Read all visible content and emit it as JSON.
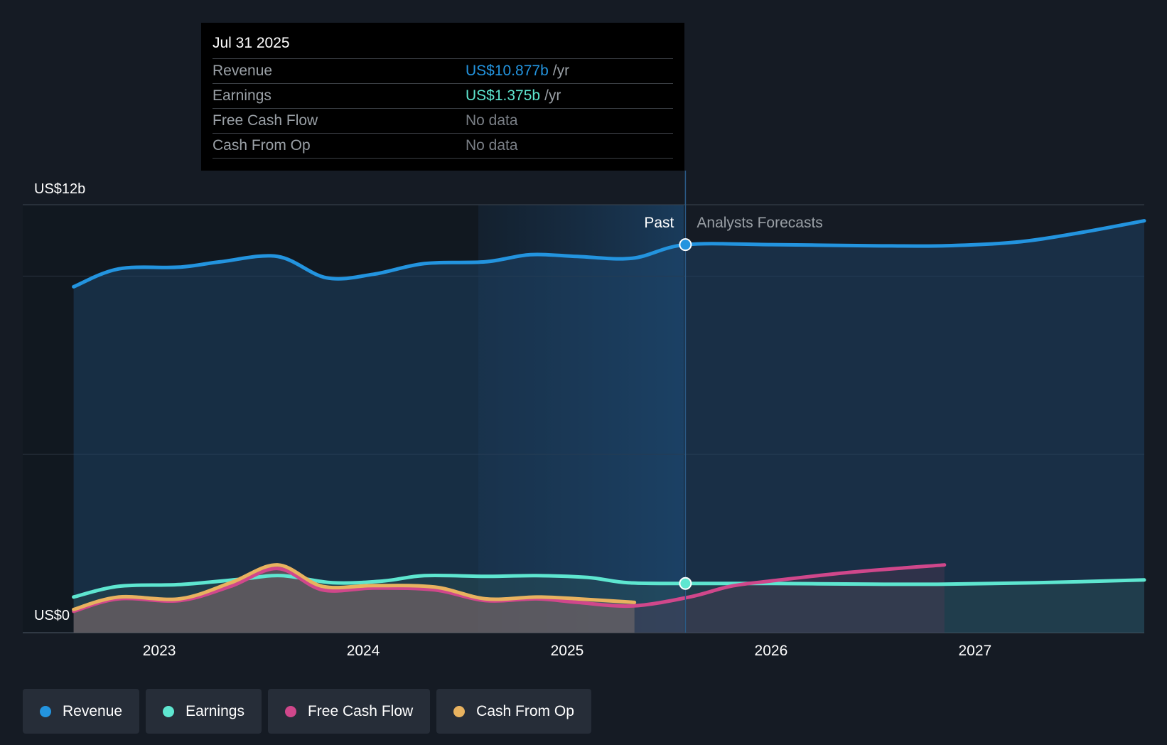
{
  "colors": {
    "revenue": "#2394df",
    "earnings": "#5ee6d0",
    "fcf": "#d0478b",
    "cfo": "#e8b25f",
    "background": "#151b24"
  },
  "tooltip": {
    "date": "Jul 31 2025",
    "rows": [
      {
        "label": "Revenue",
        "value": "US$10.877b",
        "unit": "/yr",
        "color": "#2394df"
      },
      {
        "label": "Earnings",
        "value": "US$1.375b",
        "unit": "/yr",
        "color": "#5ee6d0"
      },
      {
        "label": "Free Cash Flow",
        "value": "No data",
        "unit": "",
        "color": "#7a7f86"
      },
      {
        "label": "Cash From Op",
        "value": "No data",
        "unit": "",
        "color": "#7a7f86"
      }
    ]
  },
  "chart_data": {
    "type": "line",
    "y_top_label": "US$12b",
    "y_bottom_label": "US$0",
    "ylim": [
      0,
      12
    ],
    "xlim": [
      2022.55,
      2027.83
    ],
    "divider_x": 2025.58,
    "past_label": "Past",
    "forecast_label": "Analysts Forecasts",
    "x_ticks": [
      {
        "label": "2023",
        "x": 2023.0
      },
      {
        "label": "2024",
        "x": 2024.0
      },
      {
        "label": "2025",
        "x": 2025.0
      },
      {
        "label": "2026",
        "x": 2026.0
      },
      {
        "label": "2027",
        "x": 2027.0
      }
    ],
    "series": [
      {
        "name": "Revenue",
        "key": "revenue",
        "points": [
          [
            2022.58,
            9.7
          ],
          [
            2022.8,
            10.2
          ],
          [
            2023.1,
            10.25
          ],
          [
            2023.3,
            10.4
          ],
          [
            2023.58,
            10.55
          ],
          [
            2023.82,
            9.95
          ],
          [
            2024.05,
            10.05
          ],
          [
            2024.3,
            10.35
          ],
          [
            2024.6,
            10.4
          ],
          [
            2024.82,
            10.6
          ],
          [
            2025.05,
            10.55
          ],
          [
            2025.32,
            10.5
          ],
          [
            2025.58,
            10.88
          ],
          [
            2026.0,
            10.88
          ],
          [
            2026.5,
            10.85
          ],
          [
            2026.85,
            10.85
          ],
          [
            2027.2,
            10.95
          ],
          [
            2027.5,
            11.2
          ],
          [
            2027.83,
            11.55
          ]
        ],
        "highlight": [
          2025.58,
          10.88
        ]
      },
      {
        "name": "Earnings",
        "key": "earnings",
        "points": [
          [
            2022.58,
            1.0
          ],
          [
            2022.8,
            1.3
          ],
          [
            2023.1,
            1.35
          ],
          [
            2023.4,
            1.5
          ],
          [
            2023.6,
            1.6
          ],
          [
            2023.85,
            1.4
          ],
          [
            2024.1,
            1.45
          ],
          [
            2024.3,
            1.6
          ],
          [
            2024.6,
            1.58
          ],
          [
            2024.85,
            1.6
          ],
          [
            2025.1,
            1.55
          ],
          [
            2025.3,
            1.4
          ],
          [
            2025.58,
            1.38
          ],
          [
            2026.0,
            1.38
          ],
          [
            2026.5,
            1.36
          ],
          [
            2026.85,
            1.36
          ],
          [
            2027.3,
            1.4
          ],
          [
            2027.83,
            1.48
          ]
        ],
        "highlight": [
          2025.58,
          1.38
        ]
      },
      {
        "name": "Free Cash Flow",
        "key": "fcf",
        "points": [
          [
            2022.58,
            0.6
          ],
          [
            2022.8,
            0.95
          ],
          [
            2023.1,
            0.9
          ],
          [
            2023.35,
            1.3
          ],
          [
            2023.58,
            1.8
          ],
          [
            2023.8,
            1.2
          ],
          [
            2024.05,
            1.25
          ],
          [
            2024.35,
            1.2
          ],
          [
            2024.6,
            0.9
          ],
          [
            2024.85,
            0.95
          ],
          [
            2025.05,
            0.85
          ],
          [
            2025.32,
            0.75
          ],
          [
            2025.6,
            1.0
          ],
          [
            2025.8,
            1.3
          ],
          [
            2026.0,
            1.45
          ],
          [
            2026.4,
            1.7
          ],
          [
            2026.85,
            1.9
          ]
        ]
      },
      {
        "name": "Cash From Op",
        "key": "cfo",
        "points": [
          [
            2022.58,
            0.65
          ],
          [
            2022.8,
            1.0
          ],
          [
            2023.1,
            0.95
          ],
          [
            2023.35,
            1.4
          ],
          [
            2023.58,
            1.9
          ],
          [
            2023.8,
            1.3
          ],
          [
            2024.05,
            1.32
          ],
          [
            2024.35,
            1.28
          ],
          [
            2024.6,
            0.95
          ],
          [
            2024.85,
            1.0
          ],
          [
            2025.05,
            0.95
          ],
          [
            2025.33,
            0.85
          ]
        ]
      }
    ]
  },
  "legend": [
    {
      "label": "Revenue",
      "color": "#2394df"
    },
    {
      "label": "Earnings",
      "color": "#5ee6d0"
    },
    {
      "label": "Free Cash Flow",
      "color": "#d0478b"
    },
    {
      "label": "Cash From Op",
      "color": "#e8b25f"
    }
  ]
}
